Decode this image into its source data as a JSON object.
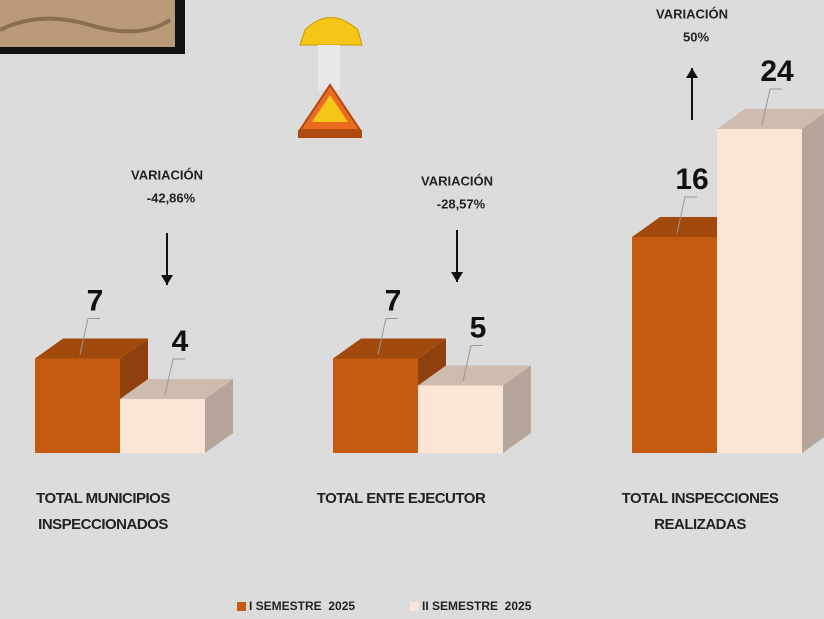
{
  "chart_data": {
    "type": "bar3d",
    "categories": [
      "TOTAL MUNICIPIOS INSPECCIONADOS",
      "TOTAL ENTE EJECUTOR",
      "TOTAL INSPECCIONES REALIZADAS"
    ],
    "series": [
      {
        "name": "I SEMESTRE  2025",
        "color": "#c55a11",
        "values": [
          7,
          7,
          16
        ]
      },
      {
        "name": "II SEMESTRE  2025",
        "color": "#fbe5d6",
        "values": [
          4,
          5,
          24
        ]
      }
    ],
    "annotations": [
      {
        "label": "VARIACIÓN",
        "text": "-42,86%",
        "direction": "down"
      },
      {
        "label": "VARIACIÓN",
        "text": "-28,57%",
        "direction": "down"
      },
      {
        "label": "VARIACIÓN",
        "text": "50%",
        "direction": "up"
      }
    ],
    "legend": "bottom"
  }
}
